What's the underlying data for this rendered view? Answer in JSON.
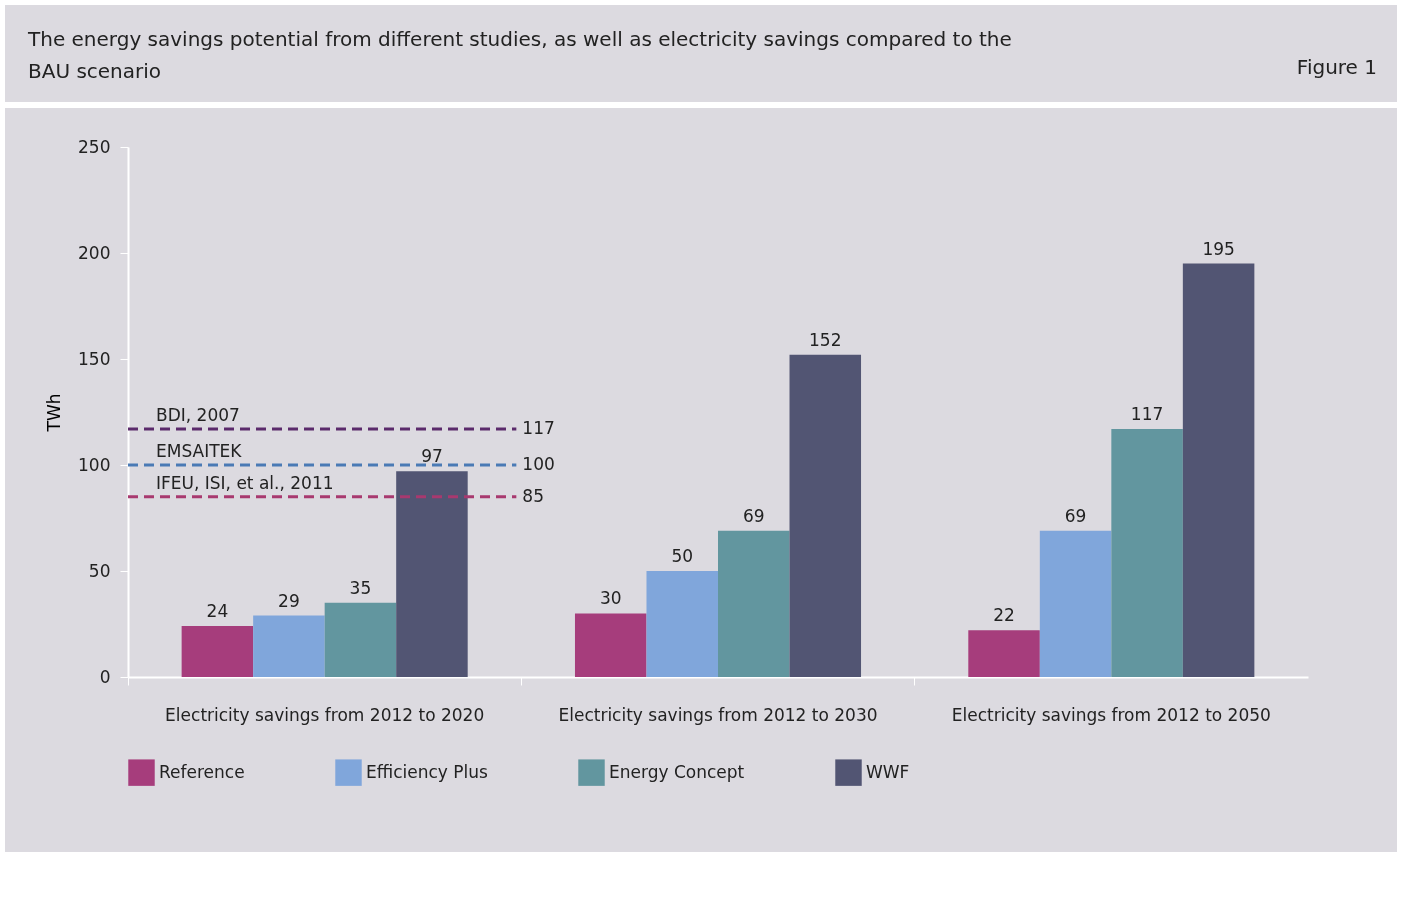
{
  "chart_data": {
    "type": "bar",
    "title": "The energy savings potential from different studies, as well as electricity savings compared to the BAU scenario",
    "ylabel": "TWh",
    "categories": [
      "Electricity savings from 2012 to 2020",
      "Electricity savings from 2012 to 2030",
      "Electricity savings from 2012 to 2050"
    ],
    "series": [
      {
        "name": "Reference",
        "color": "#a63d7c",
        "values": [
          24,
          30,
          22
        ]
      },
      {
        "name": "Efficiency Plus",
        "color": "#80a6db",
        "values": [
          29,
          50,
          69
        ]
      },
      {
        "name": "Energy Concept",
        "color": "#62969f",
        "values": [
          35,
          69,
          117
        ]
      },
      {
        "name": "WWF",
        "color": "#525573",
        "values": [
          97,
          152,
          195
        ]
      }
    ],
    "ylim": [
      0,
      250
    ],
    "yticks": [
      0,
      50,
      100,
      150,
      200,
      250
    ],
    "legend": "bottom",
    "data_labels": true,
    "ref_lines": [
      {
        "axis": "y",
        "value": 117,
        "label": "117",
        "color": "#5b2a6b",
        "line_style": "dashed"
      },
      {
        "axis": "y",
        "value": 100,
        "label": "100",
        "color": "#4a7ab5",
        "line_style": "dashed"
      },
      {
        "axis": "y",
        "value": 85,
        "label": "85",
        "color": "#a8396f",
        "line_style": "dashed"
      }
    ],
    "annotations": [
      "Figure 1",
      {
        "text": "BDI, 2007",
        "y": 117
      },
      {
        "text": "EMSAITEK",
        "y": 100
      },
      {
        "text": "IFEU, ISI, et al., 2011",
        "y": 85
      }
    ]
  }
}
